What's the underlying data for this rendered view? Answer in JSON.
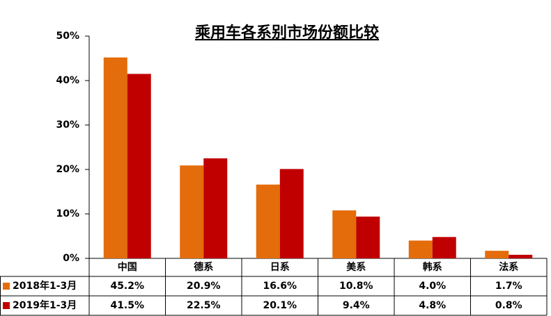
{
  "chart_data": {
    "type": "bar",
    "title": "乘用车各系别市场份额比较",
    "categories": [
      "中国",
      "德系",
      "日系",
      "美系",
      "韩系",
      "法系"
    ],
    "series": [
      {
        "name": "2018年1-3月",
        "color": "#e46c0a",
        "values": [
          45.2,
          20.9,
          16.6,
          10.8,
          4.0,
          1.7
        ],
        "value_labels": [
          "45.2%",
          "20.9%",
          "16.6%",
          "10.8%",
          "4.0%",
          "1.7%"
        ]
      },
      {
        "name": "2019年1-3月",
        "color": "#c00000",
        "values": [
          41.5,
          22.5,
          20.1,
          9.4,
          4.8,
          0.8
        ],
        "value_labels": [
          "41.5%",
          "22.5%",
          "20.1%",
          "9.4%",
          "4.8%",
          "0.8%"
        ]
      }
    ],
    "ylim": [
      0,
      50
    ],
    "yticks": [
      {
        "value": 0,
        "label": "0%"
      },
      {
        "value": 10,
        "label": "10%"
      },
      {
        "value": 20,
        "label": "20%"
      },
      {
        "value": 30,
        "label": "30%"
      },
      {
        "value": 40,
        "label": "40%"
      },
      {
        "value": 50,
        "label": "50%"
      }
    ],
    "grid": false
  }
}
